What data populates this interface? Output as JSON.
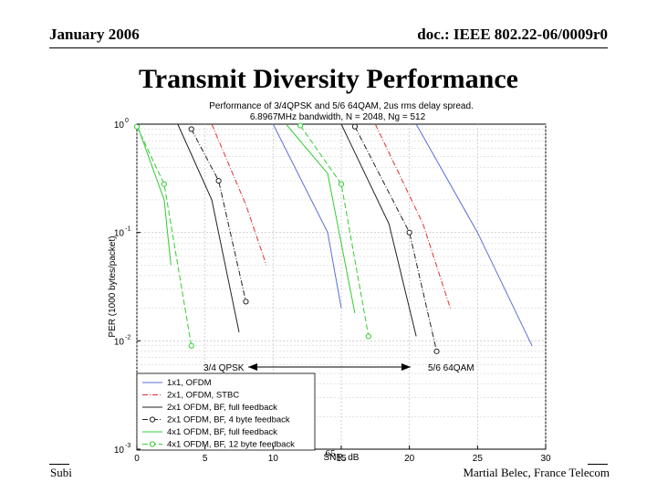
{
  "header": {
    "date": "January 2006",
    "doc": "doc.: IEEE 802.22-06/0009r0"
  },
  "slide_title": "Transmit Diversity Performance",
  "footer": {
    "left": "Subi",
    "page": "65",
    "author": "Martial Belec, France Telecom"
  },
  "colors": {
    "blue": "#5a6fd6",
    "red": "#e03030",
    "black": "#222222",
    "green": "#33cc33",
    "grid": "#c8c8c8"
  },
  "chart_data": {
    "type": "line",
    "title": "Performance of 3/4QPSK and 5/6 64QAM, 2us rms delay spread.",
    "subtitle": "6.8967MHz bandwidth, N = 2048, Ng = 512",
    "xlabel": "SNR, dB",
    "ylabel": "PER (1000 bytes/packet)",
    "xlim": [
      0,
      30
    ],
    "ylim": [
      0.001,
      1
    ],
    "yscale": "log",
    "x_ticks": [
      "0",
      "5",
      "10",
      "15",
      "20",
      "25",
      "30"
    ],
    "y_ticks": [
      {
        "value": 1,
        "base": "10",
        "exp": "0"
      },
      {
        "value": 0.1,
        "base": "10",
        "exp": "-1"
      },
      {
        "value": 0.01,
        "base": "10",
        "exp": "-2"
      },
      {
        "value": 0.001,
        "base": "10",
        "exp": "-3"
      }
    ],
    "grid": true,
    "legend_position": "bottom-left",
    "annotations": {
      "qpsk": "3/4 QPSK",
      "qam": "5/6 64QAM"
    },
    "series": [
      {
        "name": "1x1, OFDM",
        "color": "blue",
        "dash": "solid",
        "marker": "none",
        "groups": [
          [
            [
              10,
              1.0
            ],
            [
              14,
              0.1
            ],
            [
              15,
              0.02
            ]
          ],
          [
            [
              20.5,
              1.0
            ],
            [
              25,
              0.1
            ],
            [
              29,
              0.009
            ]
          ]
        ]
      },
      {
        "name": "2x1, OFDM, STBC",
        "color": "red",
        "dash": "dashdot",
        "marker": "none",
        "groups": [
          [
            [
              5.5,
              1.0
            ],
            [
              8,
              0.18
            ],
            [
              9.5,
              0.05
            ]
          ],
          [
            [
              17.5,
              1.0
            ],
            [
              21,
              0.12
            ],
            [
              23,
              0.02
            ]
          ]
        ]
      },
      {
        "name": "2x1 OFDM, BF, full feedback",
        "color": "black",
        "dash": "solid",
        "marker": "none",
        "groups": [
          [
            [
              3,
              1.0
            ],
            [
              5.5,
              0.2
            ],
            [
              7.5,
              0.012
            ]
          ],
          [
            [
              15,
              1.0
            ],
            [
              18.5,
              0.12
            ],
            [
              20.5,
              0.011
            ]
          ]
        ]
      },
      {
        "name": "2x1 OFDM, BF, 4 byte feedback",
        "color": "black",
        "dash": "dashdot",
        "marker": "circle",
        "groups": [
          [
            [
              4,
              0.9
            ],
            [
              6,
              0.3
            ],
            [
              8,
              0.023
            ]
          ],
          [
            [
              16,
              0.95
            ],
            [
              20,
              0.1
            ],
            [
              22,
              0.008
            ]
          ]
        ]
      },
      {
        "name": "4x1 OFDM, BF, full feedback",
        "color": "green",
        "dash": "solid",
        "marker": "none",
        "groups": [
          [
            [
              0,
              1.0
            ],
            [
              2,
              0.2
            ],
            [
              2.5,
              0.05
            ]
          ],
          [
            [
              11,
              0.98
            ],
            [
              14,
              0.35
            ],
            [
              16,
              0.018
            ]
          ]
        ]
      },
      {
        "name": "4x1 OFDM, BF, 12 byte feedback",
        "color": "green",
        "dash": "dashed",
        "marker": "circle",
        "groups": [
          [
            [
              0,
              0.95
            ],
            [
              2,
              0.28
            ],
            [
              4,
              0.009
            ]
          ],
          [
            [
              12,
              0.97
            ],
            [
              15,
              0.28
            ],
            [
              17,
              0.011
            ]
          ]
        ]
      }
    ]
  }
}
